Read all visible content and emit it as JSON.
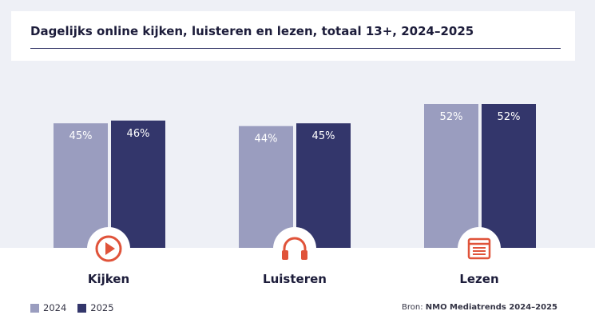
{
  "chart_data": {
    "type": "bar",
    "title": "Dagelijks online kijken, luisteren en lezen, totaal 13+, 2024–2025",
    "categories": [
      "Kijken",
      "Luisteren",
      "Lezen"
    ],
    "category_icons": [
      "play-icon",
      "headphones-icon",
      "browser-window-icon"
    ],
    "series": [
      {
        "name": "2024",
        "values": [
          45,
          44,
          52
        ],
        "labels": [
          "45%",
          "44%",
          "52%"
        ],
        "color": "#9a9dbf"
      },
      {
        "name": "2025",
        "values": [
          46,
          45,
          52
        ],
        "labels": [
          "46%",
          "45%",
          "52%"
        ],
        "color": "#33366b"
      }
    ],
    "unit": "%",
    "grid": false,
    "legend_position": "bottom-left",
    "source_label": "Bron:",
    "source_name": "NMO Mediatrends 2024–2025"
  },
  "colors": {
    "accent_icon": "#e0533a",
    "title_text": "#1c1c3a",
    "background_top": "#eef0f6"
  }
}
